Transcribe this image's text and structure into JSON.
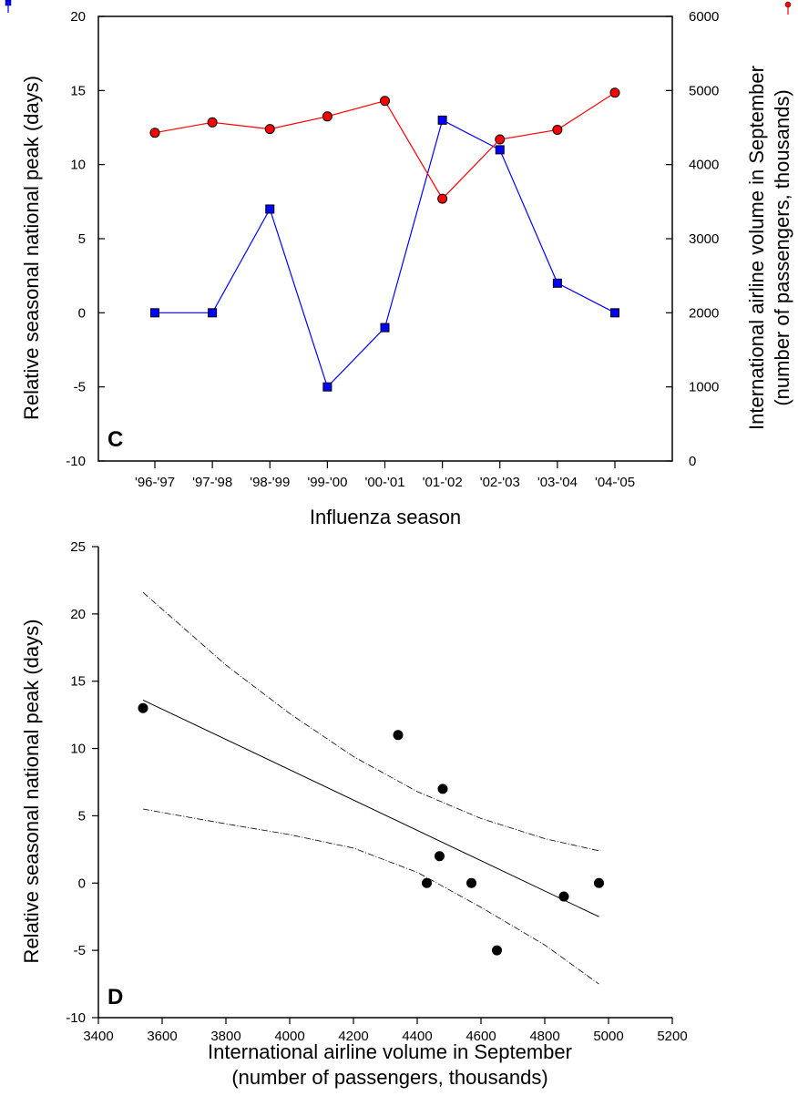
{
  "chart_data": [
    {
      "panel": "C",
      "type": "line",
      "xlabel": "Influenza season",
      "ylabel": "Relative seasonal national peak (days)",
      "y2label_line1": "International airline volume in September",
      "y2label_line2": "(number of passengers, thousands)",
      "categories": [
        "'96-'97",
        "'97-'98",
        "'98-'99",
        "'99-'00",
        "'00-'01",
        "'01-'02",
        "'02-'03",
        "'03-'04",
        "'04-'05"
      ],
      "ylim": [
        -10,
        20
      ],
      "yticks": [
        -10,
        -5,
        0,
        5,
        10,
        15,
        20
      ],
      "y2lim": [
        0,
        6000
      ],
      "y2ticks": [
        0,
        1000,
        2000,
        3000,
        4000,
        5000,
        6000
      ],
      "grid": false,
      "series": [
        {
          "axis": "left",
          "marker": "square",
          "color": "#0000ff",
          "values": [
            0,
            0,
            7,
            -5,
            -1,
            13,
            11,
            2,
            0
          ]
        },
        {
          "axis": "right",
          "marker": "circle",
          "color": "#ff0000",
          "values": [
            4430,
            4570,
            4480,
            4650,
            4860,
            3540,
            4340,
            4470,
            4970
          ]
        }
      ]
    },
    {
      "panel": "D",
      "type": "scatter",
      "xlabel_line1": "International airline volume in September",
      "xlabel_line2": "(number of passengers, thousands)",
      "ylabel": "Relative seasonal national peak (days)",
      "xlim": [
        3400,
        5200
      ],
      "xticks": [
        3400,
        3600,
        3800,
        4000,
        4200,
        4400,
        4600,
        4800,
        5000,
        5200
      ],
      "ylim": [
        -10,
        25
      ],
      "yticks": [
        -10,
        -5,
        0,
        5,
        10,
        15,
        20,
        25
      ],
      "grid": false,
      "points": [
        {
          "x": 3540,
          "y": 13
        },
        {
          "x": 4340,
          "y": 11
        },
        {
          "x": 4480,
          "y": 7
        },
        {
          "x": 4470,
          "y": 2
        },
        {
          "x": 4430,
          "y": 0
        },
        {
          "x": 4570,
          "y": 0
        },
        {
          "x": 4650,
          "y": -5
        },
        {
          "x": 4860,
          "y": -1
        },
        {
          "x": 4970,
          "y": 0
        }
      ],
      "regression_line": {
        "x": [
          3540,
          4970
        ],
        "y": [
          13.6,
          -2.5
        ]
      },
      "ci_upper": {
        "x": [
          3540,
          3800,
          4000,
          4200,
          4400,
          4600,
          4800,
          4970
        ],
        "y": [
          21.6,
          16.2,
          12.6,
          9.4,
          6.8,
          4.8,
          3.3,
          2.4
        ]
      },
      "ci_lower": {
        "x": [
          3540,
          3800,
          4000,
          4200,
          4400,
          4600,
          4800,
          4970
        ],
        "y": [
          5.5,
          4.4,
          3.6,
          2.6,
          0.8,
          -1.8,
          -4.6,
          -7.5
        ]
      }
    }
  ]
}
